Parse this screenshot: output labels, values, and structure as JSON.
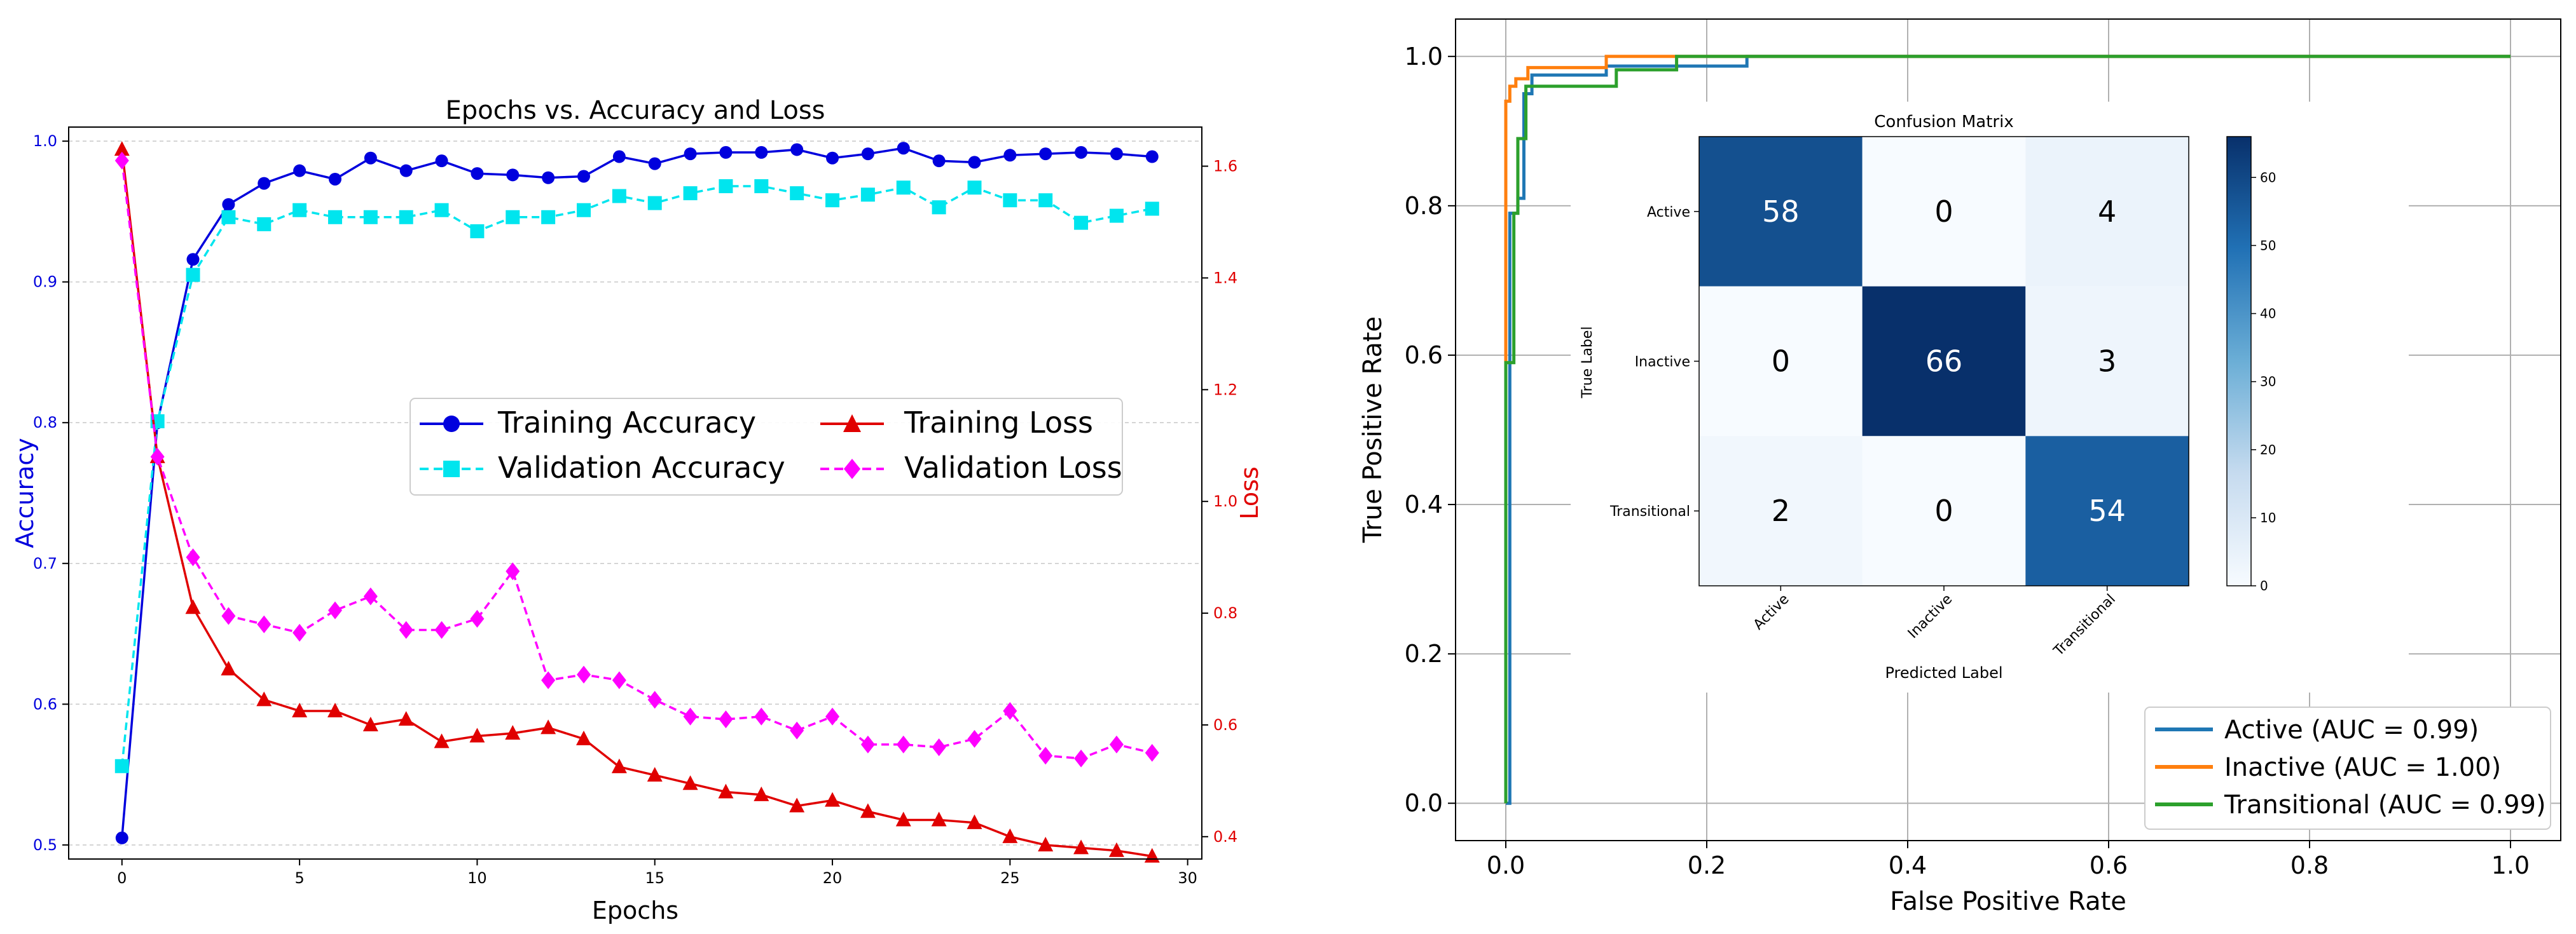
{
  "colors": {
    "train_acc": "#0000dd",
    "val_acc": "#00e5ee",
    "train_loss": "#e00000",
    "val_loss": "#ff00ff",
    "roc_active": "#1f77b4",
    "roc_inactive": "#ff7f0e",
    "roc_transitional": "#2ca02c",
    "cm_low": "#f7fbff",
    "cm_high": "#08306b"
  },
  "chart_data": [
    {
      "type": "line",
      "title": "Epochs vs. Accuracy and Loss",
      "xlabel": "Epochs",
      "ylabel": "Accuracy",
      "y2label": "Loss",
      "xlim": [
        -1.5,
        30.4
      ],
      "ylim": [
        0.49,
        1.01
      ],
      "y2lim": [
        0.36,
        1.67
      ],
      "xticks": [
        "0",
        "5",
        "10",
        "15",
        "20",
        "25",
        "30"
      ],
      "xtick_values": [
        0,
        5,
        10,
        15,
        20,
        25,
        30
      ],
      "yticks": [
        "0.5",
        "0.6",
        "0.7",
        "0.8",
        "0.9",
        "1.0"
      ],
      "ytick_values": [
        0.5,
        0.6,
        0.7,
        0.8,
        0.9,
        1.0
      ],
      "y2ticks": [
        "0.4",
        "0.6",
        "0.8",
        "1.0",
        "1.2",
        "1.4",
        "1.6"
      ],
      "y2tick_values": [
        0.4,
        0.6,
        0.8,
        1.0,
        1.2,
        1.4,
        1.6
      ],
      "x": [
        0,
        1,
        2,
        3,
        4,
        5,
        6,
        7,
        8,
        9,
        10,
        11,
        12,
        13,
        14,
        15,
        16,
        17,
        18,
        19,
        20,
        21,
        22,
        23,
        24,
        25,
        26,
        27,
        28,
        29
      ],
      "series": [
        {
          "name": "Training Accuracy",
          "axis": "left",
          "marker": "circle",
          "dash": "solid",
          "values": [
            0.505,
            0.8,
            0.916,
            0.955,
            0.97,
            0.979,
            0.973,
            0.988,
            0.979,
            0.986,
            0.977,
            0.976,
            0.974,
            0.975,
            0.989,
            0.984,
            0.991,
            0.992,
            0.992,
            0.994,
            0.988,
            0.991,
            0.995,
            0.986,
            0.985,
            0.99,
            0.991,
            0.992,
            0.991,
            0.989
          ]
        },
        {
          "name": "Validation Accuracy",
          "axis": "left",
          "marker": "square",
          "dash": "dashed",
          "values": [
            0.556,
            0.801,
            0.905,
            0.946,
            0.941,
            0.951,
            0.946,
            0.946,
            0.946,
            0.951,
            0.936,
            0.946,
            0.946,
            0.951,
            0.961,
            0.956,
            0.963,
            0.968,
            0.968,
            0.963,
            0.958,
            0.962,
            0.967,
            0.953,
            0.967,
            0.958,
            0.958,
            0.942,
            0.947,
            0.952
          ]
        },
        {
          "name": "Training Loss",
          "axis": "right",
          "marker": "triangle",
          "dash": "solid",
          "values": [
            1.63,
            1.08,
            0.81,
            0.7,
            0.645,
            0.625,
            0.625,
            0.6,
            0.61,
            0.57,
            0.58,
            0.585,
            0.595,
            0.575,
            0.525,
            0.51,
            0.495,
            0.48,
            0.475,
            0.455,
            0.465,
            0.445,
            0.43,
            0.43,
            0.425,
            0.4,
            0.385,
            0.38,
            0.375,
            0.365
          ]
        },
        {
          "name": "Validation Loss",
          "axis": "right",
          "marker": "diamond",
          "dash": "dashed",
          "values": [
            1.61,
            1.08,
            0.9,
            0.795,
            0.78,
            0.765,
            0.805,
            0.83,
            0.77,
            0.77,
            0.79,
            0.875,
            0.68,
            0.69,
            0.68,
            0.645,
            0.615,
            0.61,
            0.615,
            0.59,
            0.615,
            0.565,
            0.565,
            0.56,
            0.575,
            0.625,
            0.545,
            0.54,
            0.565,
            0.55
          ]
        }
      ],
      "legend": "center-right, 2 columns",
      "grid": "horizontal dashed"
    },
    {
      "type": "line",
      "title": "",
      "xlabel": "False Positive Rate",
      "ylabel": "True Positive Rate",
      "xlim": [
        -0.05,
        1.05
      ],
      "ylim": [
        -0.05,
        1.05
      ],
      "xticks": [
        "0.0",
        "0.2",
        "0.4",
        "0.6",
        "0.8",
        "1.0"
      ],
      "xtick_values": [
        0.0,
        0.2,
        0.4,
        0.6,
        0.8,
        1.0
      ],
      "yticks": [
        "0.0",
        "0.2",
        "0.4",
        "0.6",
        "0.8",
        "1.0"
      ],
      "ytick_values": [
        0.0,
        0.2,
        0.4,
        0.6,
        0.8,
        1.0
      ],
      "series": [
        {
          "name": "Active (AUC = 0.99)",
          "x": [
            0,
            0.004,
            0.004,
            0.012,
            0.012,
            0.018,
            0.018,
            0.026,
            0.026,
            0.1,
            0.1,
            0.24,
            0.24,
            1.0
          ],
          "y": [
            0,
            0,
            0.79,
            0.79,
            0.81,
            0.81,
            0.95,
            0.95,
            0.975,
            0.975,
            0.987,
            0.987,
            1.0,
            1.0
          ]
        },
        {
          "name": "Inactive (AUC = 1.00)",
          "x": [
            0,
            0,
            0.004,
            0.004,
            0.01,
            0.01,
            0.022,
            0.022,
            0.1,
            0.1,
            1.0
          ],
          "y": [
            0,
            0.94,
            0.94,
            0.96,
            0.96,
            0.97,
            0.97,
            0.985,
            0.985,
            1.0,
            1.0
          ]
        },
        {
          "name": "Transitional (AUC = 0.99)",
          "x": [
            0,
            0,
            0.008,
            0.008,
            0.012,
            0.012,
            0.02,
            0.02,
            0.11,
            0.11,
            0.17,
            0.17,
            1.0
          ],
          "y": [
            0,
            0.59,
            0.59,
            0.79,
            0.79,
            0.89,
            0.89,
            0.96,
            0.96,
            0.982,
            0.982,
            1.0,
            1.0
          ]
        }
      ],
      "legend": "lower-right",
      "grid": "both"
    },
    {
      "type": "heatmap",
      "title": "Confusion Matrix",
      "xlabel": "Predicted Label",
      "ylabel": "True Label",
      "labels": [
        "Active",
        "Inactive",
        "Transitional"
      ],
      "matrix": [
        [
          58,
          0,
          4
        ],
        [
          0,
          66,
          3
        ],
        [
          2,
          0,
          54
        ]
      ],
      "colorbar_ticks": [
        "0",
        "10",
        "20",
        "30",
        "40",
        "50",
        "60"
      ],
      "colorbar_tick_values": [
        0,
        10,
        20,
        30,
        40,
        50,
        60
      ],
      "vmin": 0,
      "vmax": 66
    }
  ]
}
